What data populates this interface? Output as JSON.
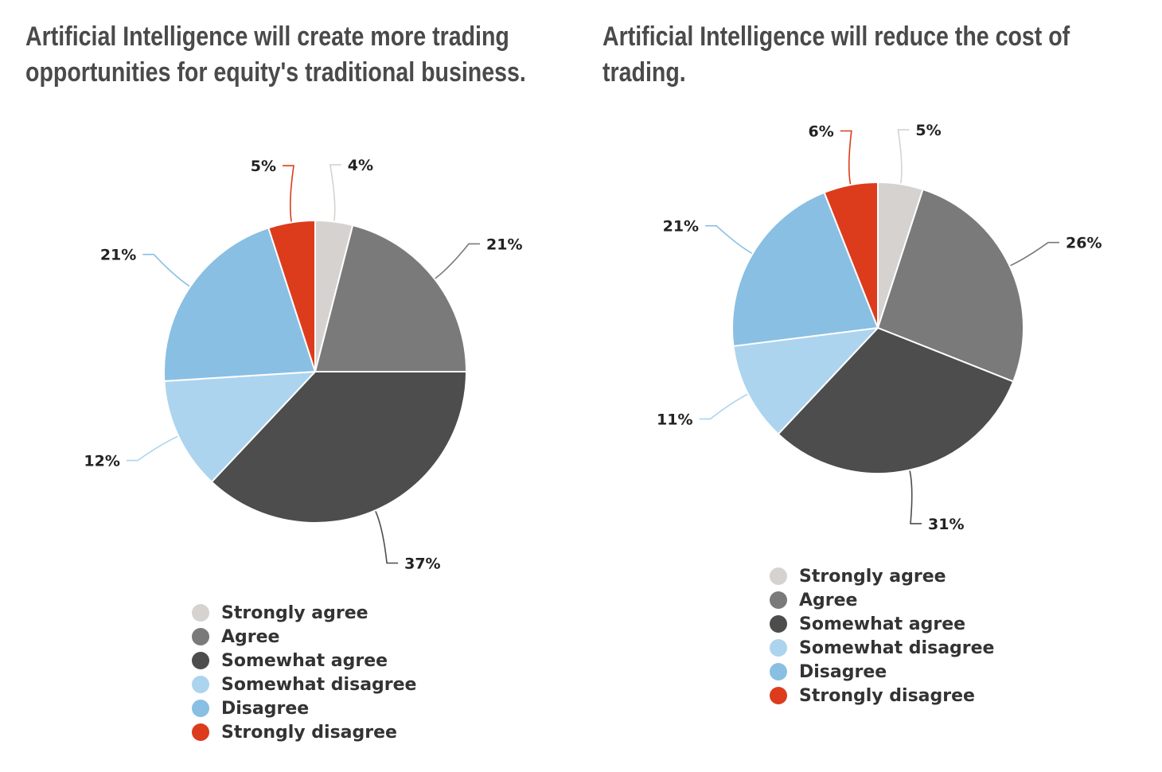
{
  "colors": {
    "Strongly agree": "#d6d2cf",
    "Agree": "#7a7a7a",
    "Somewhat agree": "#4d4d4d",
    "Somewhat disagree": "#acd4ee",
    "Disagree": "#89bfe3",
    "Strongly disagree": "#dc3c1c"
  },
  "legend": {
    "items": [
      "Strongly agree",
      "Agree",
      "Somewhat agree",
      "Somewhat disagree",
      "Disagree",
      "Strongly disagree"
    ]
  },
  "chart_data": [
    {
      "type": "pie",
      "title": "Artificial Intelligence will create more trading opportunities for equity's traditional business.",
      "categories": [
        "Strongly agree",
        "Agree",
        "Somewhat agree",
        "Somewhat disagree",
        "Disagree",
        "Strongly disagree"
      ],
      "values": [
        4,
        21,
        37,
        12,
        21,
        5
      ],
      "data_labels": [
        "4%",
        "21%",
        "37%",
        "12%",
        "21%",
        "5%"
      ],
      "legend_position": "bottom"
    },
    {
      "type": "pie",
      "title": "Artificial Intelligence will reduce the cost of trading.",
      "categories": [
        "Strongly agree",
        "Agree",
        "Somewhat agree",
        "Somewhat disagree",
        "Disagree",
        "Strongly disagree"
      ],
      "values": [
        5,
        26,
        31,
        11,
        21,
        6
      ],
      "data_labels": [
        "5%",
        "26%",
        "31%",
        "11%",
        "21%",
        "6%"
      ],
      "legend_position": "bottom"
    }
  ]
}
